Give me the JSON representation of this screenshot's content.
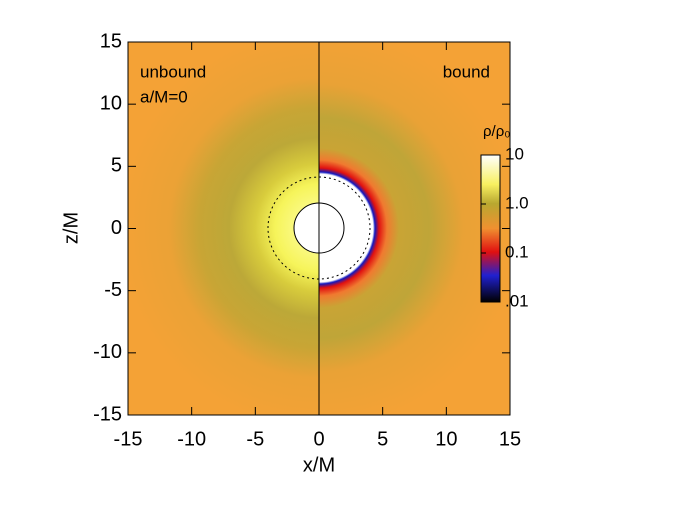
{
  "chart_data": {
    "type": "image",
    "xlabel": "x/M",
    "ylabel": "z/M",
    "annotations": [
      "unbound",
      "a/M=0",
      "bound"
    ],
    "xlim": [
      -15,
      15
    ],
    "ylim": [
      -15,
      15
    ],
    "xticks": [
      -15,
      -10,
      -5,
      0,
      5,
      10,
      15
    ],
    "yticks": [
      -15,
      -10,
      -5,
      0,
      5,
      10,
      15
    ],
    "colorbar": {
      "title": "ρ/ρ₀",
      "scale": "log",
      "lim": [
        0.01,
        10
      ],
      "ticks": [
        10,
        {
          "value": 1,
          "label": "1.0"
        },
        {
          "value": 0.1,
          "label": "0.1"
        },
        {
          "value": 0.01,
          "label": ".01"
        }
      ]
    }
  }
}
